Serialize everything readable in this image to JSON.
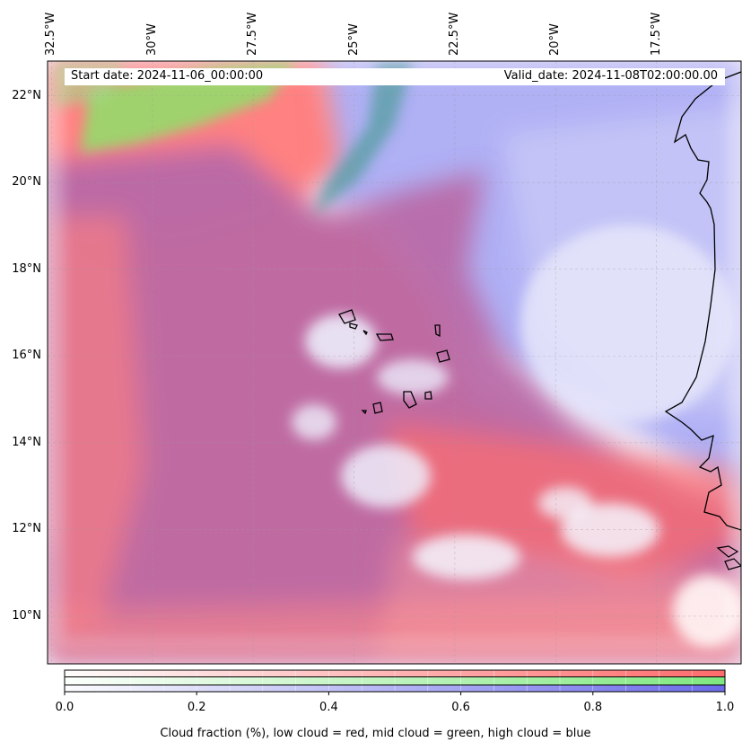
{
  "map": {
    "lon_labels": [
      "32.5°W",
      "30°W",
      "27.5°W",
      "25°W",
      "22.5°W",
      "20°W",
      "17.5°W"
    ],
    "lon_values": [
      -32.5,
      -30,
      -27.5,
      -25,
      -22.5,
      -20,
      -17.5
    ],
    "lat_labels": [
      "22°N",
      "20°N",
      "18°N",
      "16°N",
      "14°N",
      "12°N",
      "10°N"
    ],
    "lat_values": [
      22,
      20,
      18,
      16,
      14,
      12,
      10
    ],
    "extent": {
      "lon_min": -32.6,
      "lon_max": -15.4,
      "lat_min": 8.9,
      "lat_max": 22.8
    },
    "start_date": "Start date: 2024-11-06_00:00:00",
    "valid_date": "Valid_date: 2024-11-08T02:00:00.00",
    "colors": {
      "low": "#ff6b6b",
      "mid": "#7fe06a",
      "high": "#6f6fe8"
    }
  },
  "colorbar": {
    "ticks": [
      "0.0",
      "0.2",
      "0.4",
      "0.6",
      "0.8",
      "1.0"
    ],
    "tick_values": [
      0,
      0.2,
      0.4,
      0.6,
      0.8,
      1.0
    ],
    "caption": "Cloud fraction (%), low cloud = red, mid cloud = green, high cloud = blue",
    "low_color": "#ff6b6b",
    "mid_color": "#7fe87f",
    "high_color": "#6b6bea"
  }
}
